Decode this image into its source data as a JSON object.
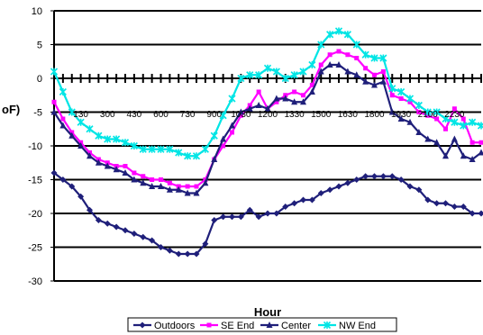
{
  "chart_data": {
    "type": "line",
    "title": "",
    "xlabel": "Hour",
    "ylabel": "oF)",
    "ylim": [
      -30,
      10
    ],
    "yticks": [
      -30,
      -25,
      -20,
      -15,
      -10,
      -5,
      0,
      5,
      10
    ],
    "ytick_labels": [
      "-30",
      "-25",
      "-20",
      "-15",
      "-10",
      "-5",
      "0",
      "5",
      "10"
    ],
    "xtick_labels": [
      "130",
      "300",
      "430",
      "600",
      "730",
      "900",
      "1030",
      "1200",
      "1330",
      "1500",
      "1630",
      "1800",
      "1930",
      "2100",
      "2230"
    ],
    "grid": true,
    "legend": "bottom",
    "x": [
      0,
      1,
      2,
      3,
      4,
      5,
      6,
      7,
      8,
      9,
      10,
      11,
      12,
      13,
      14,
      15,
      16,
      17,
      18,
      19,
      20,
      21,
      22,
      23,
      24,
      25,
      26,
      27,
      28,
      29,
      30,
      31,
      32,
      33,
      34,
      35,
      36,
      37,
      38,
      39,
      40,
      41,
      42,
      43,
      44,
      45,
      46,
      47,
      48
    ],
    "series": [
      {
        "name": "Outdoors",
        "color": "#1f1f7a",
        "marker": "diamond",
        "values": [
          -14,
          -15,
          -16,
          -17.5,
          -19.5,
          -21,
          -21.5,
          -22,
          -22.5,
          -23,
          -23.5,
          -24,
          -25,
          -25.5,
          -26,
          -26,
          -26,
          -24.5,
          -21,
          -20.5,
          -20.5,
          -20.5,
          -19.5,
          -20.5,
          -20,
          -20,
          -19,
          -18.5,
          -18,
          -18,
          -17,
          -16.5,
          -16,
          -15.5,
          -15,
          -14.5,
          -14.5,
          -14.5,
          -14.5,
          -15,
          -16,
          -16.5,
          -18,
          -18.5,
          -18.5,
          -19,
          -19,
          -20,
          -20
        ]
      },
      {
        "name": "SE End",
        "color": "#ff00ff",
        "marker": "square",
        "values": [
          -3.5,
          -6,
          -8,
          -9.5,
          -11,
          -12,
          -12.5,
          -13,
          -13,
          -14,
          -14.5,
          -15,
          -15,
          -15.5,
          -16,
          -16,
          -16,
          -15,
          -12,
          -10,
          -8,
          -5.5,
          -4,
          -2,
          -4.5,
          -3.5,
          -2.5,
          -2,
          -2.5,
          -1,
          2,
          3.5,
          4,
          3.5,
          3,
          1.5,
          0.5,
          1,
          -2.5,
          -3,
          -3.5,
          -5,
          -5.5,
          -6,
          -7.5,
          -4.5,
          -6,
          -9.5,
          -9.5
        ]
      },
      {
        "name": "Center",
        "color": "#1f1f7a",
        "marker": "triangle",
        "values": [
          -5,
          -7,
          -8.5,
          -10,
          -11.5,
          -12.5,
          -13,
          -13.5,
          -14,
          -15,
          -15.5,
          -16,
          -16,
          -16.5,
          -16.5,
          -17,
          -17,
          -15.5,
          -12,
          -9,
          -7,
          -5,
          -4.5,
          -4,
          -4.5,
          -3,
          -3,
          -3.5,
          -3.5,
          -2,
          1,
          2,
          2,
          1,
          0.5,
          -0.5,
          -1,
          -0.5,
          -5,
          -6,
          -6.5,
          -8,
          -9,
          -9.5,
          -11.5,
          -9,
          -11.5,
          -12,
          -11
        ]
      },
      {
        "name": "NW End",
        "color": "#00e5e5",
        "marker": "star",
        "values": [
          1,
          -2,
          -5,
          -6.5,
          -7.5,
          -8.5,
          -9,
          -9,
          -9.5,
          -10,
          -10.5,
          -10.5,
          -10.5,
          -10.5,
          -11,
          -11.5,
          -11.5,
          -10.5,
          -8.5,
          -5.5,
          -3,
          0,
          0.5,
          0.5,
          1.5,
          1,
          0,
          0.5,
          1,
          2,
          5,
          6.5,
          7,
          6.5,
          5,
          3.5,
          3,
          3,
          -1.5,
          -2,
          -3,
          -4,
          -5,
          -5,
          -6,
          -6.5,
          -7,
          -6.5,
          -7
        ]
      }
    ]
  }
}
